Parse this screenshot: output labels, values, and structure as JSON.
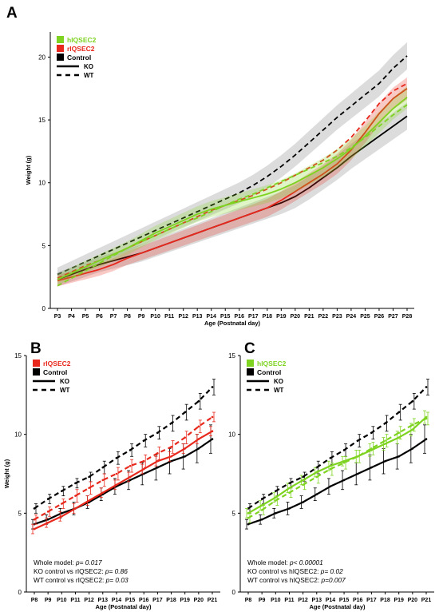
{
  "panels": {
    "A": {
      "letter": "A"
    },
    "B": {
      "letter": "B"
    },
    "C": {
      "letter": "C"
    }
  },
  "colors": {
    "hIQSEC2": "#7ED321",
    "rIQSEC2": "#E8281C",
    "Control": "#000000"
  },
  "chart_data": [
    {
      "type": "line",
      "panel": "A",
      "xlabel": "Age (Postnatal day)",
      "ylabel": "Weight (g)",
      "ylim": [
        0,
        22
      ],
      "yticks": [
        0,
        5,
        10,
        15,
        20
      ],
      "categories": [
        "P3",
        "P4",
        "P5",
        "P6",
        "P7",
        "P8",
        "P9",
        "P10",
        "P11",
        "P12",
        "P13",
        "P14",
        "P15",
        "P16",
        "P17",
        "P18",
        "P19",
        "P20",
        "P21",
        "P22",
        "P23",
        "P24",
        "P25",
        "P26",
        "P27",
        "P28"
      ],
      "legend": {
        "groups": [
          {
            "label": "hIQSEC2",
            "color": "#7ED321"
          },
          {
            "label": "rIQSEC2",
            "color": "#E8281C"
          },
          {
            "label": "Control",
            "color": "#000000"
          }
        ],
        "styles": [
          {
            "label": "KO",
            "dash": false
          },
          {
            "label": "WT",
            "dash": true
          }
        ]
      },
      "series": [
        {
          "group": "Control",
          "style": "WT",
          "band": true,
          "values": [
            2.7,
            3.2,
            3.7,
            4.2,
            4.7,
            5.2,
            5.7,
            6.2,
            6.7,
            7.2,
            7.7,
            8.2,
            8.7,
            9.2,
            9.8,
            10.5,
            11.3,
            12.2,
            13.2,
            14.2,
            15.2,
            16.1,
            17.0,
            17.9,
            19.1,
            20.1
          ]
        },
        {
          "group": "Control",
          "style": "KO",
          "band": true,
          "values": [
            2.3,
            2.7,
            3.1,
            3.5,
            3.8,
            4.1,
            4.4,
            4.8,
            5.2,
            5.6,
            6.0,
            6.4,
            6.8,
            7.2,
            7.6,
            8.0,
            8.4,
            8.9,
            9.6,
            10.4,
            11.2,
            12.1,
            12.9,
            13.7,
            14.5,
            15.3
          ]
        },
        {
          "group": "rIQSEC2",
          "style": "WT",
          "band": false,
          "values": [
            2.4,
            2.9,
            3.4,
            3.8,
            4.3,
            4.8,
            5.3,
            5.8,
            6.3,
            6.8,
            7.3,
            7.8,
            8.2,
            8.6,
            9.0,
            9.5,
            10.0,
            10.6,
            11.2,
            11.8,
            12.6,
            13.6,
            14.9,
            16.3,
            17.3,
            17.9
          ]
        },
        {
          "group": "rIQSEC2",
          "style": "KO",
          "band": true,
          "values": [
            2.2,
            2.5,
            2.8,
            3.1,
            3.5,
            4.0,
            4.4,
            4.8,
            5.2,
            5.6,
            6.0,
            6.4,
            6.8,
            7.2,
            7.6,
            8.0,
            8.6,
            9.3,
            10.0,
            10.7,
            11.5,
            12.6,
            14.0,
            15.5,
            16.7,
            17.5
          ]
        },
        {
          "group": "hIQSEC2",
          "style": "WT",
          "band": false,
          "values": [
            1.8,
            2.4,
            3.0,
            3.6,
            4.2,
            4.8,
            5.3,
            5.8,
            6.3,
            6.8,
            7.2,
            7.7,
            8.2,
            8.7,
            9.1,
            9.6,
            10.1,
            10.6,
            11.1,
            11.6,
            12.1,
            12.8,
            13.6,
            14.5,
            15.4,
            16.2
          ]
        },
        {
          "group": "hIQSEC2",
          "style": "KO",
          "band": true,
          "values": [
            2.3,
            2.8,
            3.3,
            3.8,
            4.3,
            4.8,
            5.4,
            6.0,
            6.5,
            7.0,
            7.5,
            7.9,
            8.2,
            8.5,
            8.8,
            9.1,
            9.5,
            10.0,
            10.6,
            11.2,
            11.9,
            12.7,
            13.7,
            14.8,
            15.9,
            16.8
          ]
        }
      ]
    },
    {
      "type": "line",
      "panel": "B",
      "xlabel": "Age (Postnatal day)",
      "ylabel": "Weight (g)",
      "ylim": [
        0,
        15
      ],
      "yticks": [
        0,
        5,
        10,
        15
      ],
      "categories": [
        "P8",
        "P9",
        "P10",
        "P11",
        "P12",
        "P13",
        "P14",
        "P15",
        "P16",
        "P17",
        "P18",
        "P19",
        "P20",
        "P21"
      ],
      "legend": {
        "groups": [
          {
            "label": "rIQSEC2",
            "color": "#E8281C"
          },
          {
            "label": "Control",
            "color": "#000000"
          }
        ],
        "styles": [
          {
            "label": "KO",
            "dash": false
          },
          {
            "label": "WT",
            "dash": true
          }
        ]
      },
      "series": [
        {
          "group": "Control",
          "style": "WT",
          "values": [
            5.3,
            5.9,
            6.4,
            6.9,
            7.3,
            7.9,
            8.5,
            9.0,
            9.6,
            10.1,
            10.7,
            11.4,
            12.1,
            13.0
          ],
          "errors": [
            0.3,
            0.3,
            0.3,
            0.3,
            0.3,
            0.4,
            0.4,
            0.4,
            0.4,
            0.4,
            0.5,
            0.5,
            0.5,
            0.5
          ]
        },
        {
          "group": "Control",
          "style": "KO",
          "values": [
            4.3,
            4.6,
            5.0,
            5.3,
            5.7,
            6.2,
            6.7,
            7.1,
            7.5,
            7.9,
            8.3,
            8.6,
            9.1,
            9.7
          ],
          "errors": [
            0.3,
            0.3,
            0.3,
            0.4,
            0.4,
            0.4,
            0.5,
            0.6,
            0.7,
            0.8,
            0.8,
            0.8,
            0.9,
            0.9
          ]
        },
        {
          "group": "rIQSEC2",
          "style": "WT",
          "values": [
            4.6,
            5.1,
            5.6,
            6.1,
            6.6,
            7.1,
            7.5,
            8.0,
            8.3,
            8.8,
            9.2,
            9.8,
            10.5,
            11.1
          ],
          "errors": [
            0.3,
            0.3,
            0.3,
            0.4,
            0.4,
            0.4,
            0.4,
            0.4,
            0.4,
            0.4,
            0.4,
            0.4,
            0.4,
            0.3
          ]
        },
        {
          "group": "rIQSEC2",
          "style": "KO",
          "values": [
            4.0,
            4.4,
            4.8,
            5.3,
            5.8,
            6.3,
            6.8,
            7.3,
            7.8,
            8.3,
            8.6,
            9.1,
            9.7,
            10.2
          ],
          "errors": [
            0.3,
            0.3,
            0.3,
            0.3,
            0.3,
            0.3,
            0.3,
            0.3,
            0.3,
            0.3,
            0.3,
            0.3,
            0.3,
            0.3
          ]
        }
      ],
      "annotations": [
        {
          "label": "Whole model: ",
          "pvalue": "p= 0.017"
        },
        {
          "label": "KO control vs  rIQSEC2: ",
          "pvalue": "p= 0.86"
        },
        {
          "label": "WT control vs rIQSEC2: ",
          "pvalue": "p= 0.03"
        }
      ]
    },
    {
      "type": "line",
      "panel": "C",
      "xlabel": "Age (Postnatal day)",
      "ylabel": "",
      "ylim": [
        0,
        15
      ],
      "yticks": [
        0,
        5,
        10,
        15
      ],
      "categories": [
        "P8",
        "P9",
        "P10",
        "P11",
        "P12",
        "P13",
        "P14",
        "P15",
        "P16",
        "P17",
        "P18",
        "P19",
        "P20",
        "P21"
      ],
      "legend": {
        "groups": [
          {
            "label": "hIQSEC2",
            "color": "#7ED321"
          },
          {
            "label": "Control",
            "color": "#000000"
          }
        ],
        "styles": [
          {
            "label": "KO",
            "dash": false
          },
          {
            "label": "WT",
            "dash": true
          }
        ]
      },
      "series": [
        {
          "group": "Control",
          "style": "WT",
          "values": [
            5.3,
            5.9,
            6.4,
            6.9,
            7.3,
            7.9,
            8.5,
            9.0,
            9.6,
            10.1,
            10.7,
            11.4,
            12.1,
            13.0
          ],
          "errors": [
            0.3,
            0.3,
            0.3,
            0.3,
            0.3,
            0.4,
            0.4,
            0.4,
            0.4,
            0.4,
            0.5,
            0.5,
            0.5,
            0.5
          ]
        },
        {
          "group": "Control",
          "style": "KO",
          "values": [
            4.3,
            4.6,
            5.0,
            5.3,
            5.7,
            6.2,
            6.7,
            7.1,
            7.5,
            7.9,
            8.3,
            8.6,
            9.1,
            9.7
          ],
          "errors": [
            0.3,
            0.3,
            0.3,
            0.4,
            0.4,
            0.4,
            0.5,
            0.6,
            0.7,
            0.8,
            0.8,
            0.8,
            0.9,
            0.9
          ]
        },
        {
          "group": "hIQSEC2",
          "style": "WT",
          "values": [
            4.7,
            5.2,
            5.8,
            6.3,
            6.8,
            7.3,
            7.8,
            8.2,
            8.6,
            9.1,
            9.6,
            10.1,
            10.6,
            11.0
          ],
          "errors": [
            0.3,
            0.3,
            0.3,
            0.3,
            0.3,
            0.4,
            0.4,
            0.4,
            0.4,
            0.4,
            0.4,
            0.4,
            0.4,
            0.4
          ]
        },
        {
          "group": "hIQSEC2",
          "style": "KO",
          "values": [
            5.0,
            5.5,
            6.0,
            6.6,
            7.1,
            7.6,
            8.0,
            8.3,
            8.6,
            9.0,
            9.4,
            9.8,
            10.3,
            11.1
          ],
          "errors": [
            0.3,
            0.3,
            0.3,
            0.3,
            0.3,
            0.3,
            0.3,
            0.3,
            0.4,
            0.4,
            0.4,
            0.4,
            0.4,
            0.4
          ]
        }
      ],
      "annotations": [
        {
          "label": "Whole model: ",
          "pvalue": "p< 0.00001"
        },
        {
          "label": "KO control vs  hIQSEC2: ",
          "pvalue": "p= 0.02"
        },
        {
          "label": "WT control vs hIQSEC2: ",
          "pvalue": "p=0.007"
        }
      ]
    }
  ]
}
